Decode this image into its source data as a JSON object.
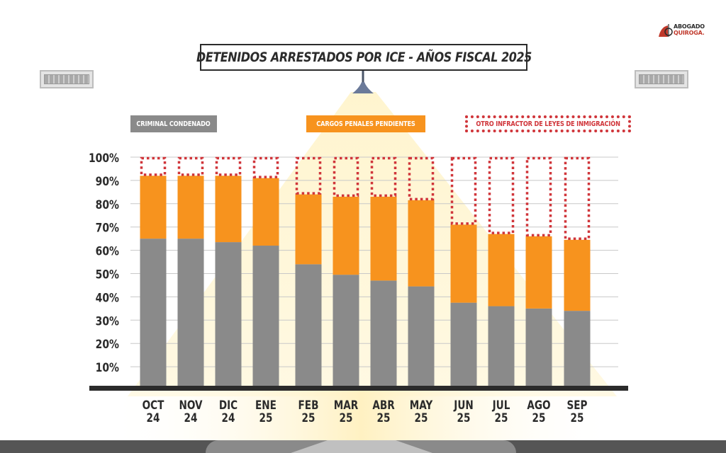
{
  "header": {
    "title": "DETENIDOS ARRESTADOS POR ICE - AÑOS FISCAL 2025",
    "logo_line1": "ABOGADO",
    "logo_line2": "QUIROGA."
  },
  "colors": {
    "criminal": "#8a8a8a",
    "pending": "#f7931e",
    "other": "#d0353a",
    "grid": "#c8c8c8",
    "axis": "#2b2b2b",
    "text": "#2b2b2b",
    "light": "#fff4cc"
  },
  "chart_data": {
    "type": "bar",
    "stacked": true,
    "title": "DETENIDOS ARRESTADOS POR ICE - AÑOS FISCAL 2025",
    "xlabel": "",
    "ylabel": "",
    "ylim": [
      0,
      100
    ],
    "yticks": [
      10,
      20,
      30,
      40,
      50,
      60,
      70,
      80,
      90,
      100
    ],
    "ytick_labels": [
      "10%",
      "20%",
      "30%",
      "40%",
      "50%",
      "60%",
      "70%",
      "80%",
      "90%",
      "100%"
    ],
    "grid": true,
    "legend_position": "top",
    "categories": [
      [
        "OCT",
        "24"
      ],
      [
        "NOV",
        "24"
      ],
      [
        "DIC",
        "24"
      ],
      [
        "ENE",
        "25"
      ],
      [
        "FEB",
        "25"
      ],
      [
        "MAR",
        "25"
      ],
      [
        "ABR",
        "25"
      ],
      [
        "MAY",
        "25"
      ],
      [
        "JUN",
        "25"
      ],
      [
        "JUL",
        "25"
      ],
      [
        "AGO",
        "25"
      ],
      [
        "SEP",
        "25"
      ]
    ],
    "series": [
      {
        "name": "CRIMINAL CONDENADO",
        "style": "solid-gray",
        "values": [
          65,
          65,
          63.5,
          62,
          54,
          49.5,
          47,
          44.5,
          37.5,
          36,
          35,
          34
        ]
      },
      {
        "name": "CARGOS PENALES PENDIENTES",
        "style": "solid-orange",
        "values": [
          27,
          27,
          28.5,
          29,
          30,
          33.5,
          36,
          37,
          33.5,
          31,
          31,
          30.5
        ]
      },
      {
        "name": "OTRO INFRACTOR DE LEYES DE INMIGRACIÓN",
        "style": "dotted-red-outline",
        "values": [
          8,
          8,
          8,
          9,
          16,
          17,
          17,
          18.5,
          29,
          33,
          34,
          35.5
        ]
      }
    ]
  },
  "legend": {
    "criminal": "CRIMINAL CONDENADO",
    "pending": "CARGOS PENALES PENDIENTES",
    "other": "OTRO INFRACTOR DE LEYES DE INMIGRACIÓN"
  }
}
